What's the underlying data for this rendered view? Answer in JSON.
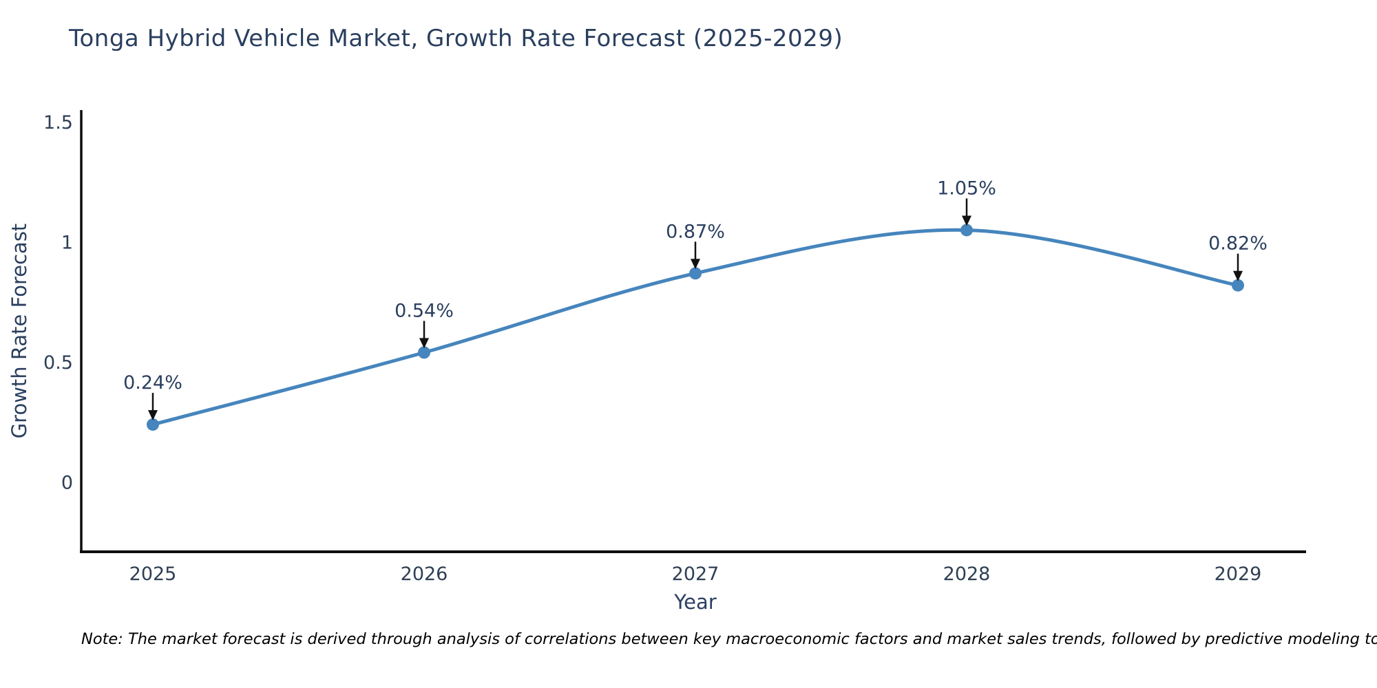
{
  "title": "Tonga Hybrid Vehicle Market, Growth Rate Forecast (2025-2029)",
  "note": "Note: The market forecast is derived through analysis of correlations between key macroeconomic factors and market sales trends, followed by predictive modeling to project future sales",
  "chart_data": {
    "type": "line",
    "title": "Tonga Hybrid Vehicle Market, Growth Rate Forecast (2025-2029)",
    "xlabel": "Year",
    "ylabel": "Growth Rate Forecast",
    "categories": [
      "2025",
      "2026",
      "2027",
      "2028",
      "2029"
    ],
    "values": [
      0.24,
      0.54,
      0.87,
      1.05,
      0.82
    ],
    "point_labels": [
      "0.24%",
      "0.54%",
      "0.87%",
      "1.05%",
      "0.82%"
    ],
    "yticks": [
      0,
      0.5,
      1,
      1.5
    ],
    "ytick_labels": [
      "0",
      "0.5",
      "1",
      "1.5"
    ],
    "ylim": [
      -0.29,
      1.55
    ],
    "grid": false,
    "legend": "none",
    "line_shape": "spline",
    "line_color": "#4685bd",
    "marker_color": "#4685bd",
    "arrow_color": "#111111",
    "label_color": "#2a3f5f",
    "axis_color": "#0d0d0d",
    "tick_color": "#2e3f54",
    "background": "#ffffff"
  }
}
